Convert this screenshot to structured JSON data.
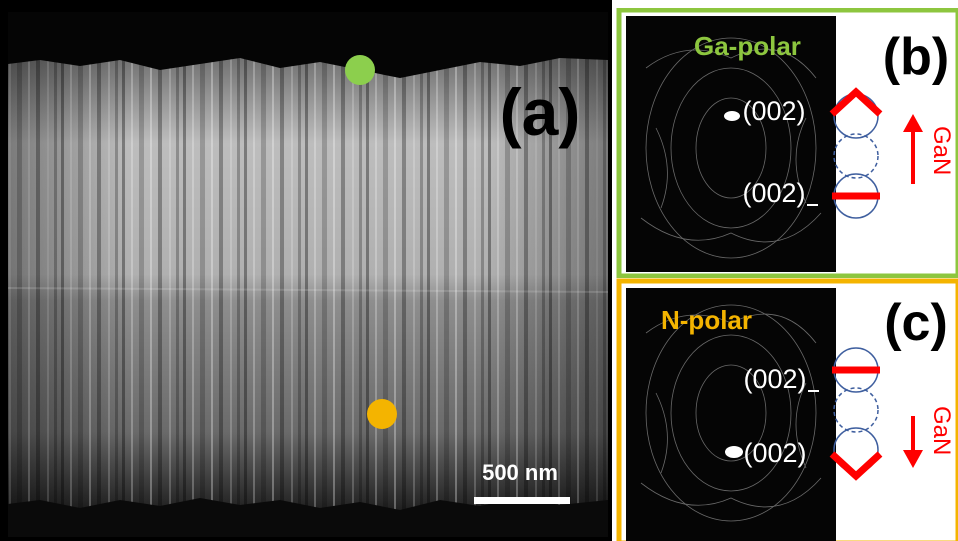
{
  "panel_a": {
    "label": "(a)",
    "scale_bar": "500 nm",
    "marker_colors": [
      "#8ccf4d",
      "#f4b400"
    ]
  },
  "panel_b": {
    "label": "(b)",
    "polarity": "Ga-polar",
    "polarity_color": "#8dc63f",
    "reflection_top": "(002)",
    "reflection_bottom": "(002)",
    "arrow_label": "GaN",
    "arrow_direction": "up"
  },
  "panel_c": {
    "label": "(c)",
    "polarity": "N-polar",
    "polarity_color": "#f4b400",
    "reflection_top": "(002)",
    "reflection_bottom": "(002)",
    "arrow_label": "GaN",
    "arrow_direction": "down"
  },
  "colors": {
    "accent_red": "#ff0000",
    "circle_blue": "#3f5f9f"
  }
}
